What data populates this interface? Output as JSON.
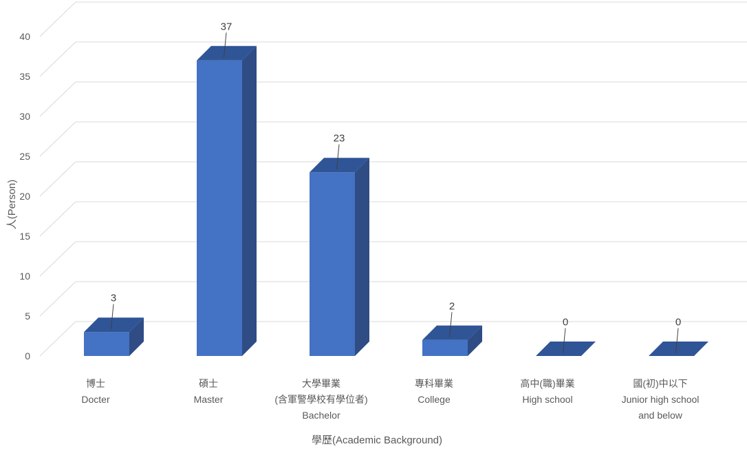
{
  "chart_data": {
    "type": "bar",
    "style": "3d-column",
    "title": "",
    "xlabel": "學歷(Academic Background)",
    "ylabel": "人(Person)",
    "ylim": [
      0,
      40
    ],
    "yticks": [
      0,
      5,
      10,
      15,
      20,
      25,
      30,
      35,
      40
    ],
    "grid": true,
    "legend": "none",
    "categories": [
      [
        "博士",
        "Docter"
      ],
      [
        "碩士",
        "Master"
      ],
      [
        "大學畢業",
        "(含軍警學校有學位者)",
        "Bachelor"
      ],
      [
        "專科畢業",
        "College"
      ],
      [
        "高中(職)畢業",
        "High school"
      ],
      [
        "國(初)中以下",
        "Junior high school",
        "and below"
      ]
    ],
    "values": [
      3,
      37,
      23,
      2,
      0,
      0
    ],
    "data_labels": [
      "3",
      "37",
      "23",
      "2",
      "0",
      "0"
    ],
    "colors": {
      "front": "#4472C4",
      "side": "#2F4C85",
      "top": "#2F5597",
      "grid": "#D9D9D9",
      "text": "#595959"
    }
  }
}
